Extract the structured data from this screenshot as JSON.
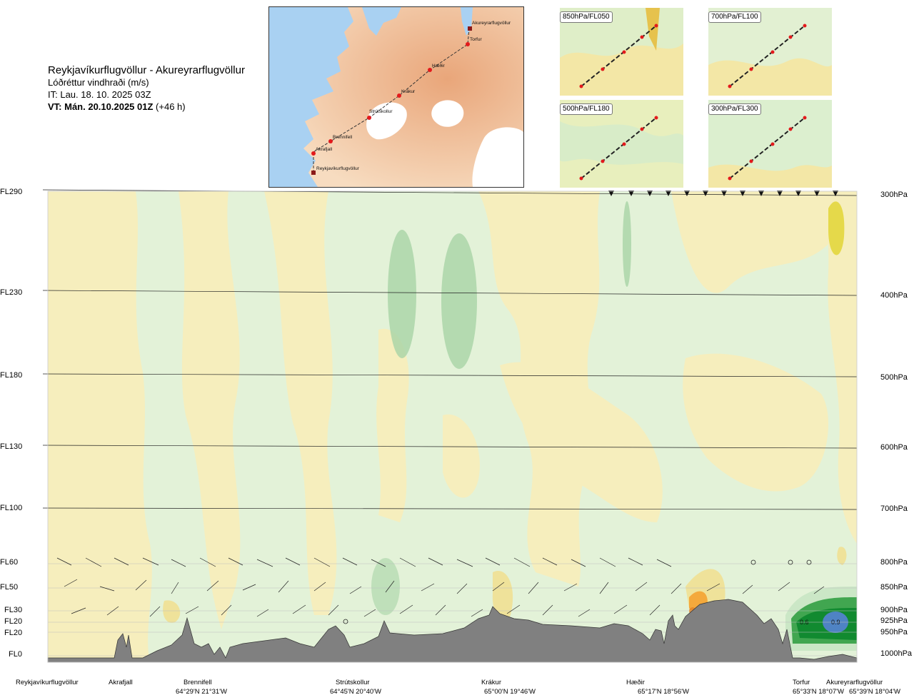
{
  "header": {
    "route_title": "Reykjavíkurflugvöllur - Akureyrarflugvöllur",
    "parameter": "Lóðréttur vindhraði (m/s)",
    "issue_time": "IT: Lau. 18. 10. 2025 03Z",
    "valid_time_label": "VT: Mán. 20.10.2025 01Z",
    "lead_time": "(+46 h)"
  },
  "route_map": {
    "stations": [
      "Akureyrarflugvöllur",
      "Torfur",
      "Hæðir",
      "Krákur",
      "Strútskollur",
      "Brennifell",
      "Akrafjall",
      "Reykjavíkurflugvöllur"
    ]
  },
  "inset_maps": [
    {
      "label": "850hPa/FL050"
    },
    {
      "label": "700hPa/FL100"
    },
    {
      "label": "500hPa/FL180"
    },
    {
      "label": "300hPa/FL300"
    }
  ],
  "flight_levels": [
    {
      "fl": "FL290",
      "pressure": "300hPa"
    },
    {
      "fl": "FL230",
      "pressure": "400hPa"
    },
    {
      "fl": "FL180",
      "pressure": "500hPa"
    },
    {
      "fl": "FL130",
      "pressure": "600hPa"
    },
    {
      "fl": "FL100",
      "pressure": "700hPa"
    },
    {
      "fl": "FL60",
      "pressure": "800hPa"
    },
    {
      "fl": "FL50",
      "pressure": "850hPa"
    },
    {
      "fl": "FL30",
      "pressure": "900hPa"
    },
    {
      "fl": "FL20",
      "pressure": "925hPa"
    },
    {
      "fl": "FL20",
      "pressure": "950hPa"
    },
    {
      "fl": "FL0",
      "pressure": "1000hPa"
    }
  ],
  "route_points": [
    {
      "name": "Reykjavíkurflugvöllur",
      "coord": ""
    },
    {
      "name": "Akrafjall",
      "coord": ""
    },
    {
      "name": "Brennifell",
      "coord": "64°29'N 21°31'W"
    },
    {
      "name": "Strútskollur",
      "coord": "64°45'N 20°40'W"
    },
    {
      "name": "Krákur",
      "coord": "65°00'N 19°46'W"
    },
    {
      "name": "Hæðir",
      "coord": "65°17'N 18°56'W"
    },
    {
      "name": "Torfur",
      "coord": "65°33'N 18°07'W"
    },
    {
      "name": "Akureyrarflugvöllur",
      "coord": "65°39'N 18°04'W"
    }
  ],
  "contour_labels": [
    "0.6",
    "0.9"
  ],
  "colors": {
    "terrain": "#808080",
    "ocean": "#a9d1f2",
    "land": "#f4cba5",
    "route": "#333333",
    "station_marker": "#e31a1c",
    "neg_weak": "#f6eebd",
    "neg_mod": "#efe29a",
    "neg_strong": "#f2d35c",
    "pos_weak": "#e3f2d8",
    "pos_mod": "#cbe7c6",
    "pos_strong": "#a7d3a6",
    "pos_high": "#41a650",
    "pos_vhigh": "#118a30",
    "pos_peak": "#4f83c4"
  }
}
